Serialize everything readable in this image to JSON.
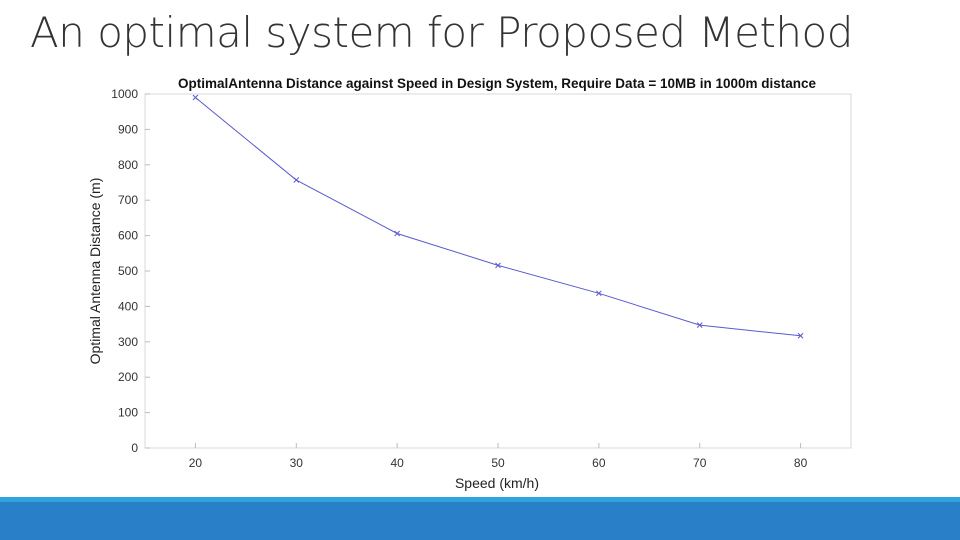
{
  "slide": {
    "title": "An optimal system for Proposed Method"
  },
  "colors": {
    "line": "#5a5acd",
    "frame": "#d9d9d9",
    "band_light": "#2ea3e0",
    "band_dark": "#2980c8"
  },
  "chart_data": {
    "type": "line",
    "title": "OptimalAntenna Distance against Speed in Design System, Require Data = 10MB in 1000m distance",
    "xlabel": "Speed (km/h)",
    "ylabel": "Optimal Antenna Distance (m)",
    "xlim": [
      15,
      85
    ],
    "ylim": [
      0,
      1000
    ],
    "x_ticks": [
      "20",
      "30",
      "40",
      "50",
      "60",
      "70",
      "80"
    ],
    "y_ticks": [
      "0",
      "100",
      "200",
      "300",
      "400",
      "500",
      "600",
      "700",
      "800",
      "900",
      "1000"
    ],
    "series": [
      {
        "name": "Optimal Antenna Distance",
        "x": [
          20,
          30,
          40,
          50,
          60,
          70,
          80
        ],
        "y": [
          990,
          757,
          606,
          516,
          437,
          347,
          317
        ],
        "marker": "x"
      }
    ],
    "grid": false,
    "legend": "none"
  }
}
